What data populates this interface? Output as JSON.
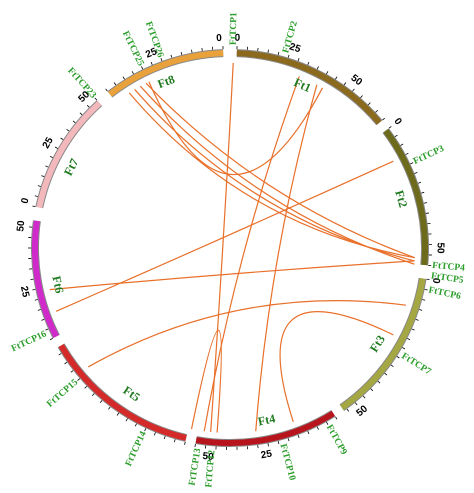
{
  "chromosomes": [
    {
      "label": "Ft1",
      "ticks": [
        0,
        25,
        50
      ]
    },
    {
      "label": "Ft2",
      "ticks": [
        0,
        50
      ]
    },
    {
      "label": "Ft3",
      "ticks": [
        0,
        50
      ]
    },
    {
      "label": "Ft4",
      "ticks": [
        25,
        50
      ]
    },
    {
      "label": "Ft5",
      "ticks": []
    },
    {
      "label": "Ft6",
      "ticks": [
        25,
        50
      ]
    },
    {
      "label": "Ft7",
      "ticks": [
        0,
        25,
        50
      ]
    },
    {
      "label": "Ft8",
      "ticks": [
        25,
        0
      ]
    }
  ],
  "genes": [
    "FtTCP1",
    "FtTCP2",
    "FtTCP3",
    "FtTCP4",
    "FtTCP5",
    "FtTCP6",
    "FtTCP7",
    "FtTCP9",
    "FtTCP10",
    "FtTCP12",
    "FtTCP13",
    "FtTCP14",
    "FtTCP15",
    "FtTCP16",
    "FtTCP23",
    "FtTCP25",
    "FtTCP26"
  ]
}
